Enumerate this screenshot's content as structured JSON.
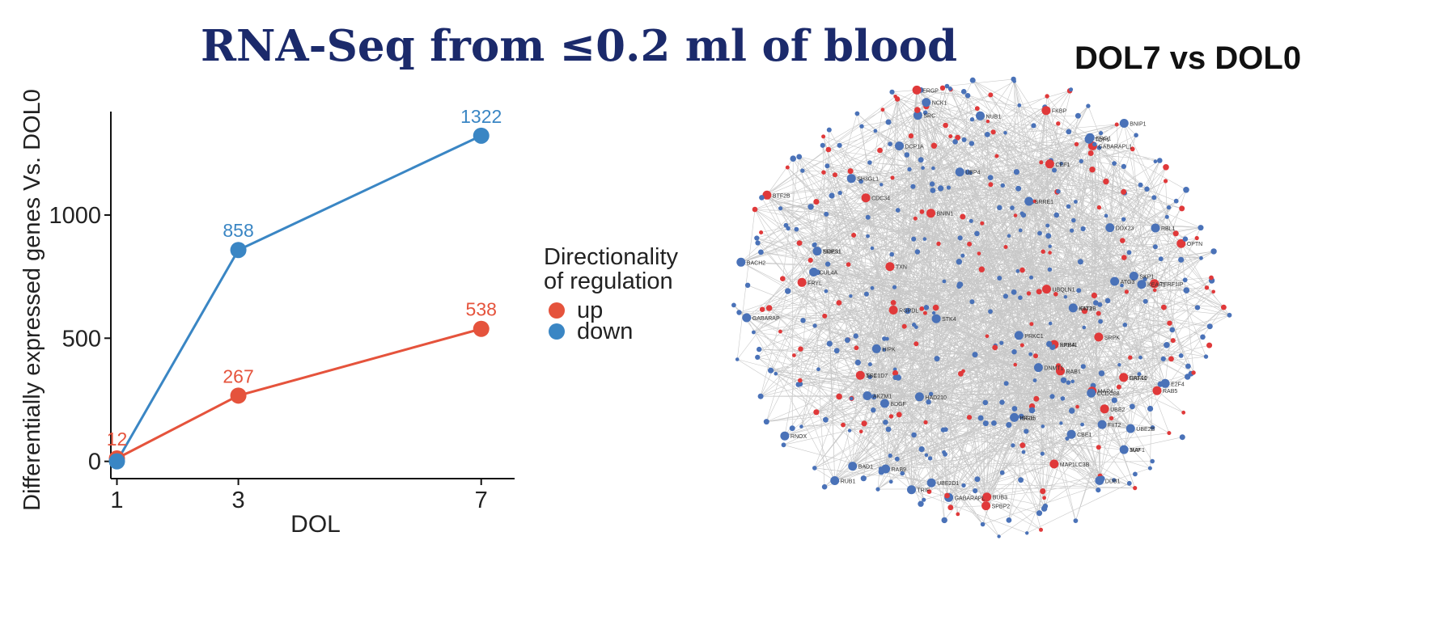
{
  "title": "RNA-Seq from ≤0.2 ml of blood",
  "network": {
    "title": "DOL7 vs DOL0",
    "colors": {
      "up": "#e0393a",
      "down": "#4a72b8",
      "edge": "#9a9a9a"
    },
    "node_labels": [
      "GATA1",
      "JUP",
      "EPB41",
      "ERPS1",
      "TSC1D7",
      "ISG15",
      "IFIT3",
      "OPTN",
      "SRC",
      "SRRE1",
      "RGPDL",
      "RNOX",
      "SRPK",
      "TXN",
      "AKZM1",
      "GABARAP",
      "ATG3",
      "BTF2B",
      "SH3GL1",
      "UBQLN1",
      "ERG1",
      "UBE2B",
      "FIIT2",
      "E2F4",
      "GABARAPL",
      "BDGF",
      "DNMT1",
      "DCP1A",
      "MAP1LC3B",
      "DDX23",
      "BNIN1",
      "UBP4",
      "HAD210",
      "RAB1",
      "BAD1",
      "STK4",
      "KEAP1",
      "CUL4A",
      "GABARAPL1",
      "RBL1",
      "NUB1",
      "UBE2",
      "CEF1",
      "BUB3",
      "CDC34",
      "FKBP",
      "RAB5",
      "SPBP2",
      "FRYL",
      "BNIP1",
      "PRKC1",
      "SKP1",
      "RAB9",
      "TOP1",
      "MAP4",
      "NCK1",
      "UBE2D1",
      "TRIF",
      "DDB1",
      "CBE1",
      "HIPK",
      "ERGP",
      "TERF1IP",
      "RUB1",
      "BACH2",
      "CCDC88",
      "RNF10",
      "MAF1",
      "RXRA",
      "NOEJ1",
      "SF1",
      "HR16",
      "KAT2B"
    ]
  },
  "chart_data": {
    "type": "line",
    "x": [
      1,
      3,
      7
    ],
    "xlabel": "DOL",
    "ylabel": "Differentially expressed genes Vs. DOL0",
    "xticks": [
      "1",
      "3",
      "7"
    ],
    "yticks": [
      "0",
      "500",
      "1000"
    ],
    "xlim": [
      0.9,
      7.55
    ],
    "ylim": [
      -70,
      1420
    ],
    "series": [
      {
        "name": "up",
        "values": [
          12,
          267,
          538
        ],
        "labels": [
          "12",
          "267",
          "538"
        ],
        "color": "#e5533c"
      },
      {
        "name": "down",
        "values": [
          0,
          858,
          1322
        ],
        "labels": [
          "",
          "858",
          "1322"
        ],
        "color": "#3a86c4"
      }
    ],
    "legend": {
      "title_line1": "Directionality",
      "title_line2": "of regulation",
      "position": "right"
    }
  }
}
